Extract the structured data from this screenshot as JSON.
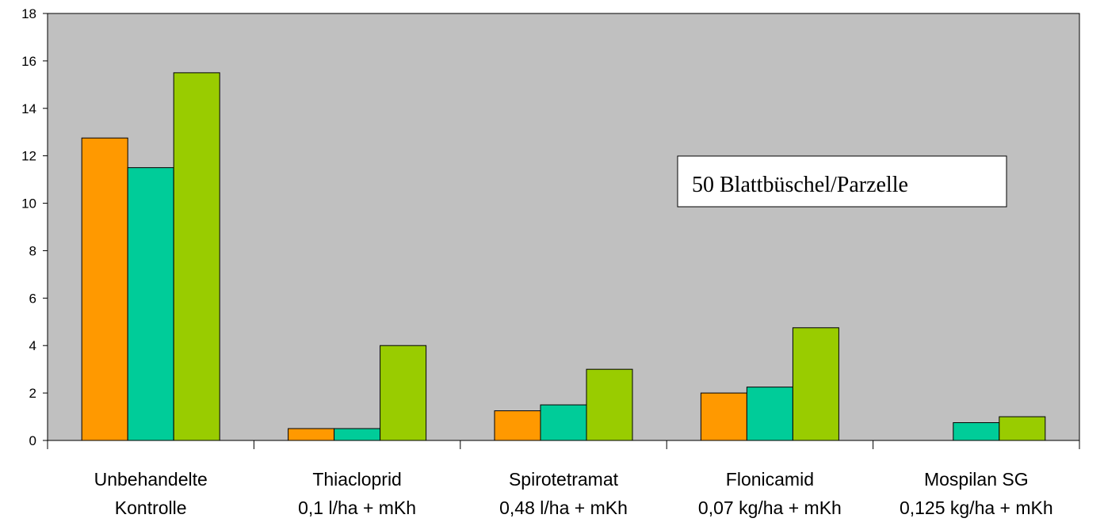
{
  "chart_data": {
    "type": "bar",
    "categories": [
      [
        "Unbehandelte",
        "Kontrolle"
      ],
      [
        "Thiacloprid",
        "0,1 l/ha + mKh"
      ],
      [
        "Spirotetramat",
        "0,48 l/ha + mKh"
      ],
      [
        "Flonicamid",
        "0,07 kg/ha + mKh"
      ],
      [
        "Mospilan SG",
        "0,125 kg/ha + mKh"
      ]
    ],
    "series": [
      {
        "color": "#FF9900",
        "values": [
          12.75,
          0.5,
          1.25,
          2.0,
          0
        ]
      },
      {
        "color": "#00CC99",
        "values": [
          11.5,
          0.5,
          1.5,
          2.25,
          0.75
        ]
      },
      {
        "color": "#99CC00",
        "values": [
          15.5,
          4.0,
          3.0,
          4.75,
          1.0
        ]
      }
    ],
    "ylim": [
      0,
      18
    ],
    "yticks": [
      "0",
      "2",
      "4",
      "6",
      "8",
      "10",
      "12",
      "14",
      "16",
      "18"
    ],
    "plot_background": "#C0C0C0",
    "annotation": "50 Blattbüschel/Parzelle",
    "xlabel": "",
    "ylabel": "",
    "title": ""
  }
}
